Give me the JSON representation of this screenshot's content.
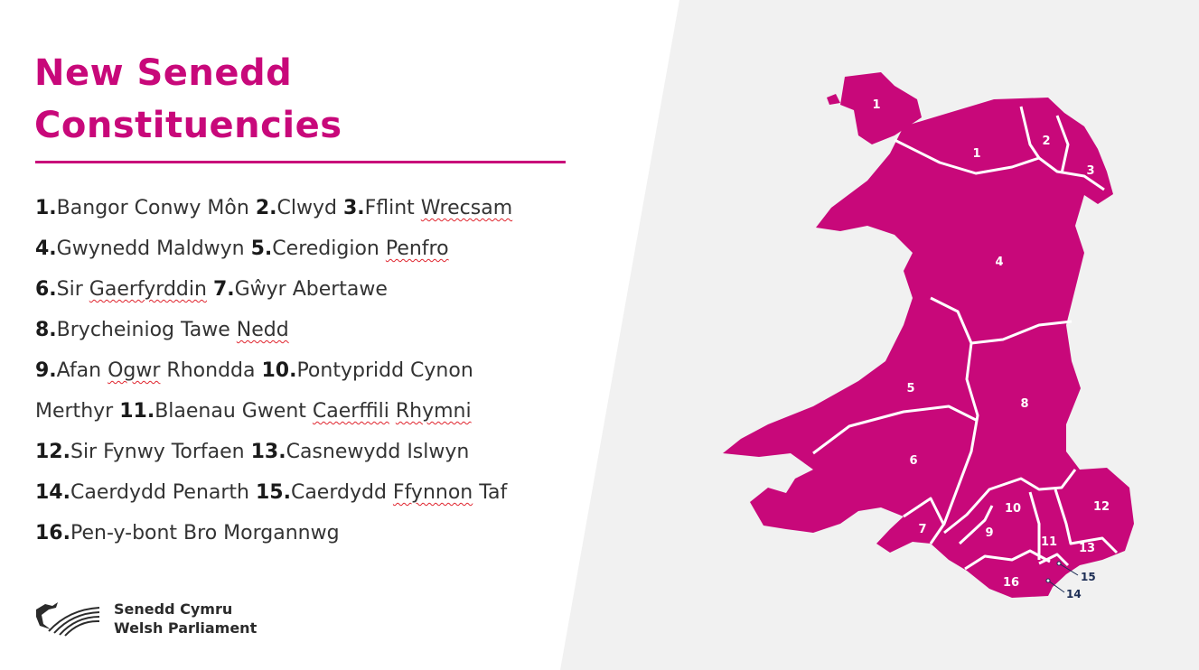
{
  "title": {
    "line1": "New Senedd",
    "line2": "Constituencies"
  },
  "colors": {
    "accent": "#c8087a",
    "background_panel": "#f1f1f1",
    "callout": "#1d2e55"
  },
  "constituency_list": [
    [
      {
        "t": "1.",
        "num": true
      },
      {
        "t": "Bangor Conwy Môn "
      },
      {
        "t": "2.",
        "num": true
      },
      {
        "t": "Clwyd "
      },
      {
        "t": "3.",
        "num": true
      },
      {
        "t": "Fflint "
      },
      {
        "t": "Wrecsam",
        "spell": true
      }
    ],
    [
      {
        "t": "4.",
        "num": true
      },
      {
        "t": "Gwynedd Maldwyn "
      },
      {
        "t": "5.",
        "num": true
      },
      {
        "t": "Ceredigion "
      },
      {
        "t": "Penfro",
        "spell": true
      }
    ],
    [
      {
        "t": "6.",
        "num": true
      },
      {
        "t": "Sir "
      },
      {
        "t": "Gaerfyrddin",
        "spell": true
      },
      {
        "t": " "
      },
      {
        "t": "7.",
        "num": true
      },
      {
        "t": "Gŵyr Abertawe"
      }
    ],
    [
      {
        "t": "8.",
        "num": true
      },
      {
        "t": "Brycheiniog Tawe "
      },
      {
        "t": "Nedd",
        "spell": true
      }
    ],
    [
      {
        "t": "9.",
        "num": true
      },
      {
        "t": "Afan "
      },
      {
        "t": "Ogwr",
        "spell": true
      },
      {
        "t": " Rhondda "
      },
      {
        "t": "10.",
        "num": true
      },
      {
        "t": "Pontypridd Cynon"
      }
    ],
    [
      {
        "t": "Merthyr "
      },
      {
        "t": "11.",
        "num": true
      },
      {
        "t": "Blaenau Gwent "
      },
      {
        "t": "Caerffili",
        "spell": true
      },
      {
        "t": " "
      },
      {
        "t": "Rhymni",
        "spell": true
      }
    ],
    [
      {
        "t": "12.",
        "num": true
      },
      {
        "t": "Sir Fynwy Torfaen "
      },
      {
        "t": "13.",
        "num": true
      },
      {
        "t": "Casnewydd Islwyn"
      }
    ],
    [
      {
        "t": "14.",
        "num": true
      },
      {
        "t": "Caerdydd Penarth "
      },
      {
        "t": "15.",
        "num": true
      },
      {
        "t": "Caerdydd "
      },
      {
        "t": "Ffynnon",
        "spell": true
      },
      {
        "t": " Taf"
      }
    ],
    [
      {
        "t": "16.",
        "num": true
      },
      {
        "t": "Pen-y-bont Bro Morgannwg"
      }
    ]
  ],
  "map": {
    "labels": [
      "1",
      "1",
      "2",
      "3",
      "4",
      "5",
      "6",
      "7",
      "8",
      "9",
      "10",
      "11",
      "12",
      "13",
      "16"
    ],
    "callouts": [
      "15",
      "14"
    ]
  },
  "logo": {
    "line1": "Senedd Cymru",
    "line2": "Welsh Parliament",
    "icon": "dragon-waves-icon"
  }
}
